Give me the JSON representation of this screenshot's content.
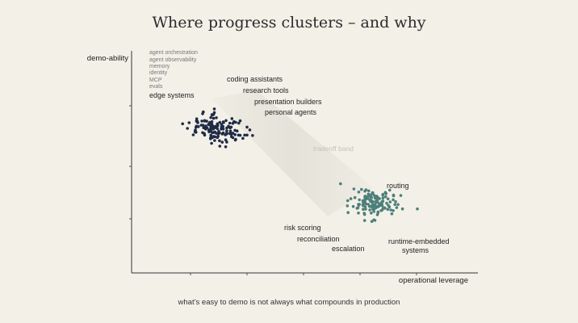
{
  "title": "Where progress clusters – and why",
  "caption": "what’s easy to demo is not always what compounds in production",
  "colors": {
    "background": "#f3f0e8",
    "cluster_left": "#1f2b45",
    "cluster_right": "#4d7f7a",
    "band": "#d9d6cc"
  },
  "chart_data": {
    "type": "scatter",
    "xlabel": "operational leverage",
    "ylabel": "demo-ability",
    "xlim": [
      0,
      10
    ],
    "ylim": [
      0,
      10
    ],
    "grid": false,
    "band_label": "tradeoff band",
    "clusters": [
      {
        "center": [
          2.55,
          6.65
        ],
        "labels": [
          "agent orchestration",
          "agent observability",
          "memory",
          "identity",
          "MCP",
          "evals",
          "edge systems",
          "coding assistants",
          "research tools",
          "presentation builders",
          "personal agents"
        ],
        "points": [
          [
            2.12,
            7.02
          ],
          [
            3.15,
            6.36
          ],
          [
            2.45,
            6.77
          ],
          [
            2.9,
            6.3
          ],
          [
            2.42,
            6.29
          ],
          [
            2.38,
            6.73
          ],
          [
            1.88,
            7.02
          ],
          [
            2.76,
            6.57
          ],
          [
            2.35,
            7.3
          ],
          [
            1.48,
            6.89
          ],
          [
            2.11,
            6.44
          ],
          [
            2.33,
            6.87
          ],
          [
            1.87,
            6.5
          ],
          [
            2.37,
            6.77
          ],
          [
            2.88,
            6.42
          ],
          [
            2.33,
            7.31
          ],
          [
            2.63,
            6.77
          ],
          [
            2.66,
            6.47
          ],
          [
            3.01,
            6.14
          ],
          [
            2.94,
            6.91
          ],
          [
            2.72,
            6.38
          ],
          [
            2.42,
            6.75
          ],
          [
            3.35,
            6.74
          ],
          [
            2.02,
            6.83
          ],
          [
            2.32,
            5.99
          ],
          [
            2.91,
            7.13
          ],
          [
            2.29,
            6.24
          ],
          [
            2.67,
            6.95
          ],
          [
            2.25,
            6.52
          ],
          [
            2.87,
            6.56
          ],
          [
            2.52,
            6.44
          ],
          [
            2.3,
            6.75
          ],
          [
            1.88,
            6.78
          ],
          [
            2.27,
            6.96
          ],
          [
            2.74,
            7.04
          ],
          [
            2.12,
            6.73
          ],
          [
            2.49,
            6.89
          ],
          [
            1.79,
            6.38
          ],
          [
            2.33,
            6.86
          ],
          [
            2.34,
            6.71
          ],
          [
            2.29,
            6.61
          ],
          [
            2.65,
            6.45
          ],
          [
            3.0,
            6.39
          ],
          [
            2.4,
            7.58
          ],
          [
            2.49,
            6.66
          ],
          [
            3.1,
            6.37
          ],
          [
            2.04,
            7.02
          ],
          [
            2.56,
            6.96
          ],
          [
            2.46,
            6.45
          ],
          [
            3.51,
            6.35
          ],
          [
            2.63,
            6.42
          ],
          [
            1.92,
            6.94
          ],
          [
            1.94,
            6.76
          ],
          [
            2.81,
            6.78
          ],
          [
            2.33,
            6.99
          ],
          [
            2.53,
            6.54
          ],
          [
            2.65,
            6.77
          ],
          [
            2.08,
            7.44
          ],
          [
            3.35,
            6.37
          ],
          [
            2.49,
            6.79
          ],
          [
            1.87,
            6.73
          ],
          [
            2.18,
            7.01
          ],
          [
            1.89,
            7.12
          ],
          [
            3.11,
            6.92
          ],
          [
            2.76,
            6.45
          ],
          [
            2.85,
            6.44
          ],
          [
            2.86,
            6.71
          ],
          [
            2.12,
            7.04
          ],
          [
            2.38,
            7.33
          ],
          [
            2.4,
            7.41
          ],
          [
            2.3,
            7.18
          ],
          [
            2.87,
            6.48
          ],
          [
            2.24,
            6.59
          ],
          [
            2.41,
            6.71
          ],
          [
            2.42,
            6.51
          ],
          [
            2.76,
            6.05
          ],
          [
            2.73,
            6.15
          ],
          [
            2.15,
            6.65
          ],
          [
            2.66,
            6.65
          ],
          [
            2.45,
            6.78
          ],
          [
            2.61,
            6.87
          ],
          [
            2.6,
            6.65
          ],
          [
            2.29,
            6.2
          ],
          [
            2.23,
            6.86
          ],
          [
            2.76,
            6.7
          ],
          [
            3.02,
            6.96
          ],
          [
            2.55,
            6.47
          ],
          [
            2.84,
            6.73
          ],
          [
            2.26,
            6.92
          ],
          [
            3.0,
            6.59
          ],
          [
            2.5,
            6.82
          ],
          [
            2.89,
            6.74
          ],
          [
            2.46,
            7.17
          ],
          [
            2.85,
            6.92
          ],
          [
            2.73,
            5.83
          ],
          [
            2.56,
            5.86
          ],
          [
            2.47,
            6.73
          ],
          [
            2.26,
            6.62
          ],
          [
            2.63,
            6.04
          ],
          [
            2.97,
            6.99
          ],
          [
            2.38,
            6.31
          ],
          [
            1.67,
            6.94
          ],
          [
            2.76,
            6.47
          ],
          [
            2.29,
            6.82
          ],
          [
            3.23,
            6.22
          ],
          [
            1.84,
            6.52
          ],
          [
            3.15,
            7.03
          ],
          [
            2.38,
            7.14
          ],
          [
            2.28,
            6.63
          ],
          [
            3.06,
            6.56
          ],
          [
            2.37,
            6.65
          ],
          [
            2.94,
            6.25
          ],
          [
            1.85,
            6.6
          ],
          [
            2.38,
            6.49
          ],
          [
            3.28,
            6.37
          ],
          [
            1.62,
            6.68
          ],
          [
            2.09,
            6.71
          ],
          [
            2.76,
            6.43
          ],
          [
            2.06,
            7.36
          ],
          [
            2.66,
            6.98
          ],
          [
            2.06,
            6.48
          ],
          [
            2.3,
            6.56
          ],
          [
            2.12,
            6.37
          ],
          [
            1.85,
            6.59
          ],
          [
            2.49,
            6.26
          ],
          [
            2.07,
            6.83
          ],
          [
            2.61,
            6.75
          ],
          [
            2.15,
            6.79
          ],
          [
            2.3,
            6.36
          ],
          [
            2.55,
            6.11
          ],
          [
            1.91,
            7.0
          ],
          [
            3.02,
            6.17
          ],
          [
            2.94,
            6.46
          ],
          [
            2.34,
            6.25
          ],
          [
            2.19,
            6.71
          ],
          [
            3.43,
            6.61
          ],
          [
            2.34,
            6.48
          ],
          [
            2.51,
            6.32
          ],
          [
            2.41,
            6.12
          ],
          [
            2.9,
            6.42
          ]
        ]
      },
      {
        "center": [
          7.0,
          3.2
        ],
        "labels": [
          "routing",
          "risk scoring",
          "reconciliation",
          "escalation",
          "runtime-embedded systems"
        ],
        "points": [
          [
            7.1,
            3.25
          ],
          [
            7.6,
            3.56
          ],
          [
            6.94,
            3.5
          ],
          [
            7.04,
            2.98
          ],
          [
            7.11,
            3.55
          ],
          [
            7.24,
            2.88
          ],
          [
            6.96,
            3.63
          ],
          [
            6.27,
            3.34
          ],
          [
            7.0,
            2.94
          ],
          [
            7.06,
            3.14
          ],
          [
            7.44,
            3.42
          ],
          [
            7.43,
            2.94
          ],
          [
            7.15,
            2.82
          ],
          [
            6.95,
            3.49
          ],
          [
            6.75,
            3.36
          ],
          [
            7.59,
            3.38
          ],
          [
            7.64,
            3.16
          ],
          [
            7.26,
            3.22
          ],
          [
            6.88,
            3.79
          ],
          [
            6.79,
            2.95
          ],
          [
            7.18,
            3.09
          ],
          [
            6.9,
            3.08
          ],
          [
            7.49,
            3.83
          ],
          [
            7.37,
            3.52
          ],
          [
            7.14,
            3.05
          ],
          [
            6.77,
            3.29
          ],
          [
            7.34,
            3.01
          ],
          [
            7.29,
            3.32
          ],
          [
            7.26,
            3.28
          ],
          [
            6.75,
            2.76
          ],
          [
            7.04,
            3.04
          ],
          [
            6.71,
            3.34
          ],
          [
            7.0,
            3.11
          ],
          [
            6.59,
            3.74
          ],
          [
            7.1,
            3.33
          ],
          [
            6.78,
            3.21
          ],
          [
            7.02,
            2.99
          ],
          [
            7.07,
            3.28
          ],
          [
            6.59,
            3.13
          ],
          [
            7.45,
            3.12
          ],
          [
            7.0,
            3.02
          ],
          [
            7.29,
            3.63
          ],
          [
            6.8,
            3.41
          ],
          [
            7.29,
            3.59
          ],
          [
            7.27,
            2.91
          ],
          [
            7.38,
            3.67
          ],
          [
            6.94,
            3.3
          ],
          [
            6.61,
            3.17
          ],
          [
            6.67,
            3.86
          ],
          [
            7.19,
            3.43
          ],
          [
            7.04,
            3.58
          ],
          [
            6.8,
            3.19
          ],
          [
            6.77,
            3.22
          ],
          [
            6.96,
            3.34
          ],
          [
            6.95,
            3.07
          ],
          [
            7.09,
            3.01
          ],
          [
            6.76,
            2.7
          ],
          [
            6.61,
            3.38
          ],
          [
            6.36,
            3.43
          ],
          [
            6.9,
            3.58
          ],
          [
            7.29,
            3.32
          ],
          [
            6.26,
            3.1
          ],
          [
            7.52,
            2.91
          ],
          [
            6.91,
            2.91
          ],
          [
            7.66,
            3.29
          ],
          [
            7.3,
            2.99
          ],
          [
            7.21,
            3.17
          ],
          [
            6.76,
            2.42
          ],
          [
            7.25,
            3.2
          ],
          [
            7.27,
            3.11
          ],
          [
            6.99,
            3.13
          ],
          [
            7.06,
            3.46
          ],
          [
            7.35,
            2.99
          ],
          [
            7.03,
            2.84
          ],
          [
            6.93,
            3.06
          ],
          [
            7.13,
            3.08
          ],
          [
            7.13,
            3.51
          ],
          [
            7.15,
            2.78
          ],
          [
            6.45,
            3.88
          ],
          [
            7.29,
            3.46
          ],
          [
            6.96,
            3.09
          ],
          [
            6.87,
            3.64
          ],
          [
            6.96,
            3.48
          ],
          [
            6.57,
            3.01
          ],
          [
            6.95,
            2.77
          ],
          [
            7.38,
            3.66
          ],
          [
            6.77,
            3.78
          ],
          [
            6.72,
            3.25
          ],
          [
            6.77,
            3.55
          ],
          [
            7.08,
            3.06
          ],
          [
            7.24,
            3.13
          ],
          [
            6.98,
            3.26
          ],
          [
            7.59,
            2.88
          ],
          [
            7.27,
            3.12
          ],
          [
            6.81,
            3.53
          ],
          [
            6.8,
            3.84
          ],
          [
            6.74,
            3.24
          ],
          [
            7.01,
            3.1
          ],
          [
            6.99,
            3.71
          ],
          [
            6.43,
            3.07
          ],
          [
            7.06,
            2.43
          ],
          [
            7.86,
            2.96
          ],
          [
            7.69,
            3.02
          ],
          [
            7.5,
            3.28
          ],
          [
            7.13,
            3.43
          ],
          [
            7.18,
            3.21
          ],
          [
            7.48,
            3.05
          ],
          [
            6.77,
            3.48
          ],
          [
            6.72,
            2.94
          ],
          [
            7.6,
            3.6
          ],
          [
            7.05,
            2.97
          ],
          [
            6.58,
            2.77
          ],
          [
            7.73,
            3.16
          ],
          [
            7.36,
            3.72
          ],
          [
            7.55,
            2.73
          ],
          [
            6.71,
            3.14
          ],
          [
            7.0,
            3.69
          ],
          [
            6.72,
            3.11
          ],
          [
            6.58,
            3.17
          ],
          [
            6.85,
            3.5
          ],
          [
            6.87,
            3.17
          ],
          [
            7.0,
            3.29
          ],
          [
            6.54,
            2.99
          ],
          [
            6.06,
            4.12
          ],
          [
            6.91,
            3.37
          ],
          [
            6.78,
            3.06
          ],
          [
            7.28,
            3.31
          ],
          [
            6.48,
            3.48
          ],
          [
            6.99,
            3.11
          ],
          [
            7.01,
            3.15
          ],
          [
            7.17,
            3.45
          ],
          [
            7.13,
            2.69
          ],
          [
            7.4,
            3.22
          ],
          [
            6.97,
            2.38
          ],
          [
            8.29,
            2.96
          ],
          [
            6.85,
            3.44
          ],
          [
            6.28,
            2.79
          ],
          [
            7.13,
            3.31
          ],
          [
            7.81,
            3.58
          ],
          [
            7.03,
            2.45
          ]
        ]
      }
    ]
  }
}
